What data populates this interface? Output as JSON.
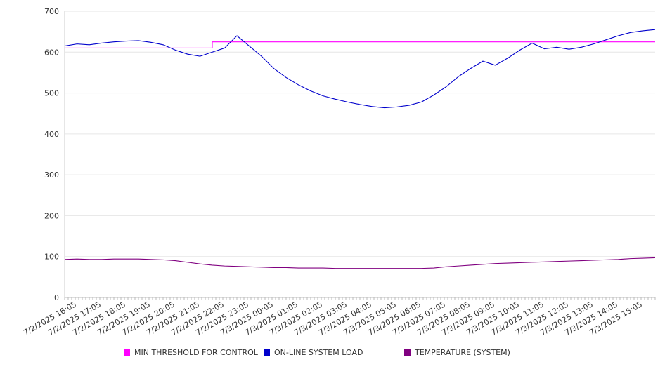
{
  "chart_data": {
    "type": "line",
    "title": "",
    "xlabel": "",
    "ylabel": "",
    "ylim": [
      0,
      700
    ],
    "yticks": [
      0,
      100,
      200,
      300,
      400,
      500,
      600,
      700
    ],
    "grid": true,
    "legend_position": "bottom",
    "x_tick_labels": [
      "7/2/2025 16:05",
      "7/2/2025 17:05",
      "7/2/2025 18:05",
      "7/2/2025 19:05",
      "7/2/2025 20:05",
      "7/2/2025 21:05",
      "7/2/2025 22:05",
      "7/2/2025 23:05",
      "7/3/2025 00:05",
      "7/3/2025 01:05",
      "7/3/2025 02:05",
      "7/3/2025 03:05",
      "7/3/2025 04:05",
      "7/3/2025 05:05",
      "7/3/2025 06:05",
      "7/3/2025 07:05",
      "7/3/2025 08:05",
      "7/3/2025 09:05",
      "7/3/2025 10:05",
      "7/3/2025 11:05",
      "7/3/2025 12:05",
      "7/3/2025 13:05",
      "7/3/2025 14:05",
      "7/3/2025 15:05"
    ],
    "x": [
      "7/2/2025 15:35",
      "7/2/2025 16:05",
      "7/2/2025 16:35",
      "7/2/2025 17:05",
      "7/2/2025 17:35",
      "7/2/2025 18:05",
      "7/2/2025 18:35",
      "7/2/2025 19:05",
      "7/2/2025 19:35",
      "7/2/2025 20:05",
      "7/2/2025 20:35",
      "7/2/2025 21:05",
      "7/2/2025 21:35",
      "7/2/2025 22:05",
      "7/2/2025 22:35",
      "7/2/2025 23:05",
      "7/2/2025 23:35",
      "7/3/2025 00:05",
      "7/3/2025 00:35",
      "7/3/2025 01:05",
      "7/3/2025 01:35",
      "7/3/2025 02:05",
      "7/3/2025 02:35",
      "7/3/2025 03:05",
      "7/3/2025 03:35",
      "7/3/2025 04:05",
      "7/3/2025 04:35",
      "7/3/2025 05:05",
      "7/3/2025 05:35",
      "7/3/2025 06:05",
      "7/3/2025 06:35",
      "7/3/2025 07:05",
      "7/3/2025 07:35",
      "7/3/2025 08:05",
      "7/3/2025 08:35",
      "7/3/2025 09:05",
      "7/3/2025 09:35",
      "7/3/2025 10:05",
      "7/3/2025 10:35",
      "7/3/2025 11:05",
      "7/3/2025 11:35",
      "7/3/2025 12:05",
      "7/3/2025 12:35",
      "7/3/2025 13:05",
      "7/3/2025 13:35",
      "7/3/2025 14:05",
      "7/3/2025 14:35",
      "7/3/2025 15:05",
      "7/3/2025 15:35"
    ],
    "series": [
      {
        "name": "MIN THRESHOLD FOR CONTROL",
        "color": "#ff00ff",
        "values": [
          610,
          610,
          610,
          610,
          610,
          610,
          610,
          610,
          610,
          610,
          610,
          610,
          625,
          625,
          625,
          625,
          625,
          625,
          625,
          625,
          625,
          625,
          625,
          625,
          625,
          625,
          625,
          625,
          625,
          625,
          625,
          625,
          625,
          625,
          625,
          625,
          625,
          625,
          625,
          625,
          625,
          625,
          625,
          625,
          625,
          625,
          625,
          625,
          625
        ]
      },
      {
        "name": "ON-LINE SYSTEM LOAD",
        "color": "#0000cc",
        "values": [
          615,
          620,
          618,
          622,
          625,
          627,
          628,
          624,
          618,
          605,
          595,
          590,
          600,
          610,
          640,
          615,
          590,
          560,
          538,
          520,
          505,
          493,
          485,
          478,
          472,
          467,
          464,
          466,
          470,
          478,
          495,
          515,
          540,
          560,
          578,
          568,
          585,
          605,
          622,
          608,
          612,
          607,
          612,
          620,
          630,
          640,
          648,
          652,
          655
        ]
      },
      {
        "name": "TEMPERATURE (SYSTEM)",
        "color": "#800080",
        "values": [
          93,
          94,
          93,
          93,
          94,
          94,
          94,
          93,
          92,
          90,
          86,
          82,
          79,
          77,
          76,
          75,
          74,
          73,
          73,
          72,
          72,
          72,
          71,
          71,
          71,
          71,
          71,
          71,
          71,
          71,
          72,
          75,
          77,
          79,
          81,
          83,
          84,
          85,
          86,
          87,
          88,
          89,
          90,
          91,
          92,
          93,
          95,
          96,
          97
        ]
      }
    ]
  }
}
